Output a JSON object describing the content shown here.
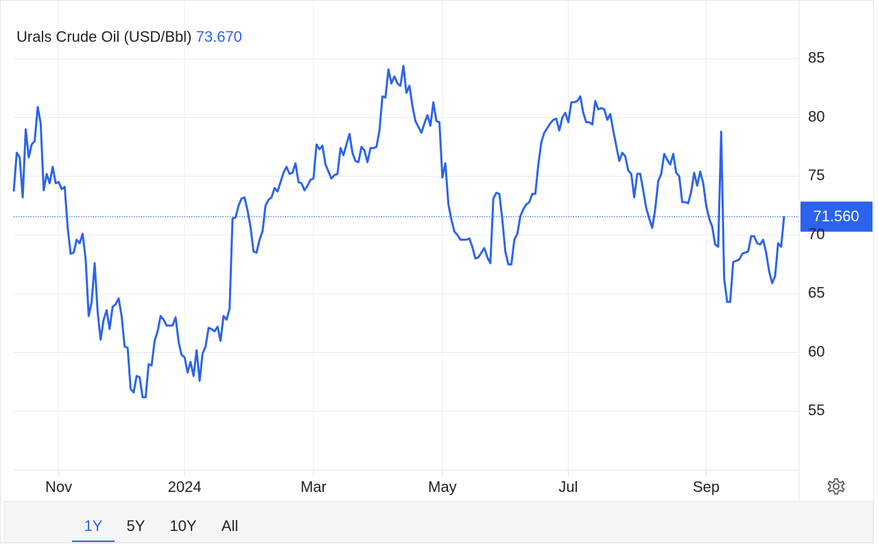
{
  "chart_data": {
    "type": "line",
    "title": "Urals Crude Oil (USD/Bbl)",
    "header_value": {
      "value": 73.67,
      "label": "73.670"
    },
    "last_value": {
      "value": 71.56,
      "label": "71.560"
    },
    "color": "#2b63ee",
    "grid": true,
    "values": [
      73.7,
      77.0,
      76.6,
      73.2,
      79.0,
      76.6,
      77.7,
      78.0,
      80.9,
      79.5,
      73.8,
      75.2,
      74.4,
      75.8,
      74.4,
      74.5,
      73.9,
      74.1,
      70.6,
      68.4,
      68.5,
      69.6,
      69.3,
      70.1,
      67.9,
      63.1,
      64.3,
      67.6,
      63.4,
      61.1,
      62.8,
      63.6,
      62.0,
      63.9,
      64.1,
      64.6,
      63.1,
      60.5,
      60.4,
      56.9,
      56.6,
      58.0,
      57.9,
      56.2,
      56.2,
      59.0,
      58.9,
      61.0,
      61.8,
      63.1,
      62.8,
      62.3,
      62.3,
      62.3,
      63.0,
      60.9,
      59.8,
      59.6,
      58.3,
      59.2,
      58.0,
      60.2,
      57.6,
      59.9,
      60.5,
      62.1,
      62.0,
      61.8,
      62.2,
      61.0,
      63.1,
      62.8,
      63.7,
      71.4,
      71.5,
      72.5,
      73.1,
      73.2,
      72.1,
      70.7,
      68.6,
      68.5,
      69.6,
      70.3,
      72.5,
      73.0,
      73.2,
      74.0,
      73.7,
      74.5,
      75.3,
      75.8,
      75.2,
      75.3,
      76.1,
      74.5,
      74.4,
      73.8,
      74.2,
      74.7,
      74.8,
      77.7,
      77.3,
      77.6,
      76.0,
      75.4,
      74.8,
      75.1,
      75.2,
      77.4,
      76.8,
      77.7,
      78.6,
      77.0,
      76.3,
      76.2,
      77.5,
      77.2,
      76.2,
      77.4,
      77.4,
      77.5,
      78.9,
      81.8,
      81.7,
      84.1,
      82.9,
      83.5,
      82.9,
      82.7,
      84.4,
      82.1,
      82.7,
      81.0,
      79.7,
      79.2,
      78.7,
      79.5,
      80.2,
      79.3,
      81.3,
      79.7,
      79.6,
      74.9,
      76.1,
      72.6,
      71.3,
      70.3,
      70.0,
      69.6,
      69.6,
      69.6,
      69.7,
      69.0,
      68.0,
      68.1,
      68.5,
      68.9,
      68.1,
      67.6,
      73.1,
      73.6,
      73.5,
      71.3,
      68.6,
      67.5,
      67.5,
      69.6,
      70.1,
      71.6,
      72.2,
      72.6,
      72.8,
      73.5,
      73.5,
      76.0,
      77.9,
      78.7,
      79.1,
      79.5,
      79.8,
      79.9,
      78.9,
      80.0,
      80.4,
      79.6,
      81.3,
      81.3,
      81.4,
      81.8,
      80.4,
      79.6,
      79.6,
      79.4,
      81.4,
      80.7,
      80.8,
      80.7,
      79.8,
      80.3,
      78.9,
      77.6,
      76.3,
      77.0,
      76.7,
      75.5,
      75.2,
      73.2,
      75.2,
      75.2,
      73.8,
      72.3,
      71.4,
      70.6,
      72.2,
      74.6,
      75.2,
      76.9,
      76.4,
      76.0,
      76.9,
      75.3,
      75.0,
      72.8,
      72.8,
      72.7,
      73.7,
      75.3,
      74.2,
      75.4,
      74.4,
      72.5,
      71.4,
      70.7,
      69.2,
      69.0,
      78.8,
      66.3,
      64.3,
      64.3,
      67.7,
      67.8,
      67.9,
      68.4,
      68.5,
      68.6,
      69.9,
      69.9,
      69.3,
      69.2,
      69.6,
      68.5,
      66.9,
      65.9,
      66.5,
      69.3,
      69.0,
      71.6
    ],
    "xlim": [
      0,
      262
    ],
    "xticks": [
      {
        "value": 15,
        "label": "Nov"
      },
      {
        "value": 57,
        "label": "2024"
      },
      {
        "value": 100,
        "label": "Mar"
      },
      {
        "value": 143,
        "label": "May"
      },
      {
        "value": 185,
        "label": "Jul"
      },
      {
        "value": 231,
        "label": "Sep"
      }
    ],
    "ylim": [
      50,
      90
    ],
    "yticks": [
      55,
      60,
      65,
      70,
      75,
      80,
      85
    ],
    "range_buttons": [
      "1Y",
      "5Y",
      "10Y",
      "All"
    ],
    "active_range": "1Y"
  }
}
